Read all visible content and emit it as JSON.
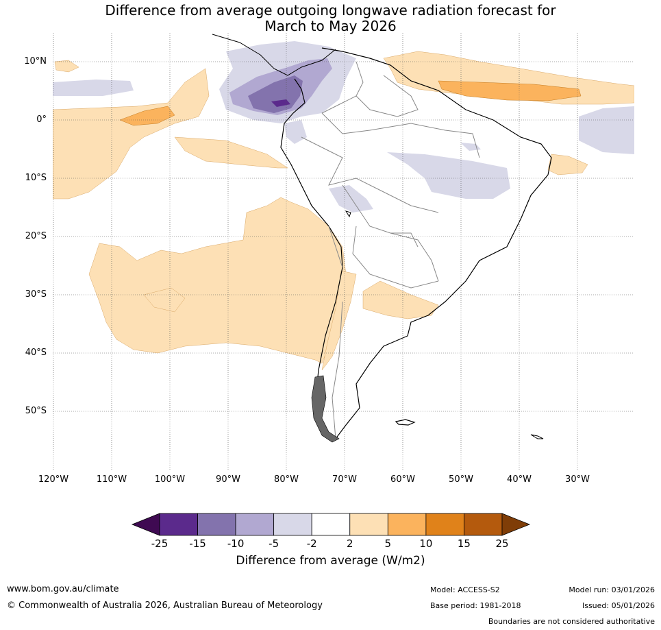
{
  "title_line1": "Difference from average outgoing longwave radiation forecast for",
  "title_line2": "March to May 2026",
  "lat_labels": [
    "10°N",
    "0°",
    "10°S",
    "20°S",
    "30°S",
    "40°S",
    "50°S"
  ],
  "lon_labels": [
    "120°W",
    "110°W",
    "100°W",
    "90°W",
    "80°W",
    "70°W",
    "60°W",
    "50°W",
    "40°W",
    "30°W"
  ],
  "colorbar": {
    "ticks": [
      "-25",
      "-15",
      "-10",
      "-5",
      "-2",
      "2",
      "5",
      "10",
      "15",
      "25"
    ],
    "colors": [
      "#3f0a52",
      "#5b2a8c",
      "#8373ad",
      "#b1a8d1",
      "#d8d8e8",
      "#ffffff",
      "#fde0b5",
      "#fbb35d",
      "#e0821a",
      "#b45a0d",
      "#7f3d07"
    ],
    "label": "Difference from average (W/m2)"
  },
  "legend_colors": {
    "light_orange": "#fde0b5",
    "mid_orange": "#fbb35d",
    "light_purple": "#d8d8e8",
    "mid_purple": "#b1a8d1",
    "dark_purple": "#8373ad",
    "deep_purple": "#5b2a8c"
  },
  "footer": {
    "website": "www.bom.gov.au/climate",
    "copyright": "© Commonwealth of Australia 2026, Australian Bureau of Meteorology",
    "model": "Model: ACCESS-S2",
    "base_period": "Base period: 1981-2018",
    "model_run": "Model run: 03/01/2026",
    "issued": "Issued: 05/01/2026",
    "disclaimer": "Boundaries are not considered authoritative"
  }
}
